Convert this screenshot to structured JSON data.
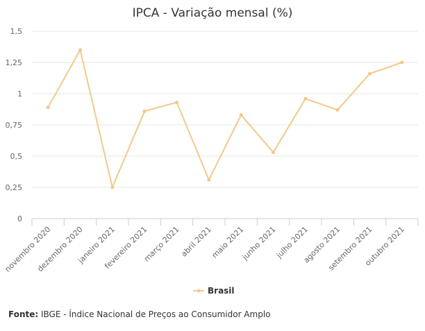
{
  "chart_data": {
    "type": "line",
    "title": "IPCA - Variação mensal (%)",
    "categories": [
      "novembro 2020",
      "dezembro 2020",
      "janeiro 2021",
      "fevereiro 2021",
      "março 2021",
      "abril 2021",
      "maio 2021",
      "junho 2021",
      "julho 2021",
      "agosto 2021",
      "setembro 2021",
      "outubro 2021"
    ],
    "series": [
      {
        "name": "Brasil",
        "values": [
          0.89,
          1.35,
          0.25,
          0.86,
          0.93,
          0.31,
          0.83,
          0.53,
          0.96,
          0.87,
          1.16,
          1.25
        ],
        "color": "#f2c98a"
      }
    ],
    "yticks": [
      "0",
      "0,25",
      "0,5",
      "0,75",
      "1",
      "1,25",
      "1,5"
    ],
    "ylim": [
      0,
      1.5
    ],
    "grid": true,
    "legend_position": "bottom-center"
  },
  "source": {
    "label": "Fonte:",
    "text": " IBGE - Índice Nacional de Preços ao Consumidor Amplo"
  }
}
